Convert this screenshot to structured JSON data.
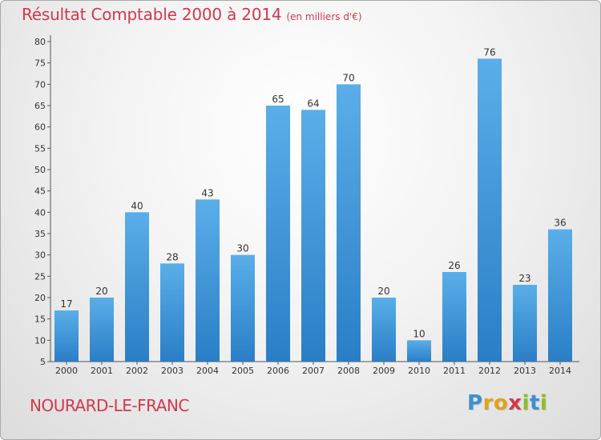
{
  "chart_data": {
    "type": "bar",
    "title": "Résultat Comptable 2000 à 2014",
    "subtitle": "(en milliers d'€)",
    "categories": [
      "2000",
      "2001",
      "2002",
      "2003",
      "2004",
      "2005",
      "2006",
      "2007",
      "2008",
      "2009",
      "2010",
      "2011",
      "2012",
      "2013",
      "2014"
    ],
    "values": [
      17,
      20,
      40,
      28,
      43,
      30,
      65,
      64,
      70,
      20,
      10,
      26,
      76,
      23,
      36
    ],
    "ylim": [
      5,
      80
    ],
    "yticks": [
      5,
      10,
      15,
      20,
      25,
      30,
      35,
      40,
      45,
      50,
      55,
      60,
      65,
      70,
      75,
      80
    ],
    "grid": false,
    "xlabel": "",
    "ylabel": ""
  },
  "footer": {
    "commune": "NOURARD-LE-FRANC",
    "logo_letters": [
      "P",
      "r",
      "o",
      "x",
      "i",
      "t",
      "i"
    ],
    "logo_colors": [
      "#3c8fd4",
      "#e2a21b",
      "#e2a21b",
      "#d2384d",
      "#8cbf26",
      "#3c8fd4",
      "#8cbf26"
    ]
  },
  "colors": {
    "title": "#d2384d",
    "bar_top": "#5aaee8",
    "bar_bottom": "#2a7ec6",
    "axis": "#555555"
  }
}
